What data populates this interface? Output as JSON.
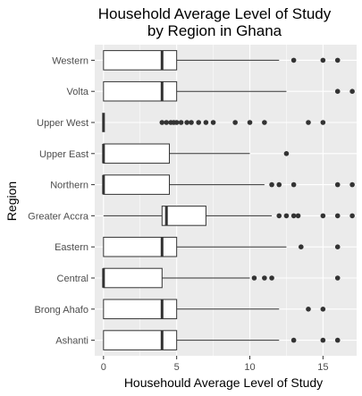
{
  "chart_data": {
    "type": "boxplot",
    "title_lines": [
      "Household Average Level of Study",
      "by Region in Ghana"
    ],
    "xlabel": "Househould Average Level of Study",
    "ylabel": "Region",
    "xlim": [
      -0.6,
      17.3
    ],
    "xticks": [
      0,
      5,
      10,
      15
    ],
    "grid": true,
    "orientation": "horizontal",
    "colors": {
      "panel_bg": "#ebebeb",
      "grid": "#ffffff",
      "box_fill": "#ffffff",
      "box_stroke": "#333333",
      "outlier": "#333333"
    },
    "categories": [
      "Western",
      "Volta",
      "Upper West",
      "Upper East",
      "Northern",
      "Greater Accra",
      "Eastern",
      "Central",
      "Brong Ahafo",
      "Ashanti"
    ],
    "boxes": [
      {
        "region": "Western",
        "min": 0,
        "q1": 0,
        "median": 4,
        "q3": 5,
        "max": 12,
        "outliers": [
          13,
          15,
          16
        ]
      },
      {
        "region": "Volta",
        "min": 0,
        "q1": 0,
        "median": 4,
        "q3": 5,
        "max": 12.5,
        "outliers": [
          16,
          17
        ]
      },
      {
        "region": "Upper West",
        "min": 0,
        "q1": 0,
        "median": 0,
        "q3": 0,
        "max": 0,
        "outliers": [
          4,
          4.3,
          4.6,
          4.8,
          5,
          5.3,
          5.7,
          6,
          6.5,
          7,
          7.5,
          9,
          10,
          11,
          14,
          15
        ]
      },
      {
        "region": "Upper East",
        "min": 0,
        "q1": 0,
        "median": 0,
        "q3": 4.5,
        "max": 10,
        "outliers": [
          12.5
        ]
      },
      {
        "region": "Northern",
        "min": 0,
        "q1": 0,
        "median": 0,
        "q3": 4.5,
        "max": 11,
        "outliers": [
          11.5,
          12,
          13,
          16,
          17
        ]
      },
      {
        "region": "Greater Accra",
        "min": 0,
        "q1": 4,
        "median": 4.3,
        "q3": 7,
        "max": 11.5,
        "outliers": [
          12,
          12.5,
          13,
          13.3,
          15,
          16,
          17
        ]
      },
      {
        "region": "Eastern",
        "min": 0,
        "q1": 0,
        "median": 4,
        "q3": 5,
        "max": 12.5,
        "outliers": [
          13.5,
          16
        ]
      },
      {
        "region": "Central",
        "min": 0,
        "q1": 0,
        "median": 0,
        "q3": 4,
        "max": 10,
        "outliers": [
          10.3,
          11,
          11.5,
          16
        ]
      },
      {
        "region": "Brong Ahafo",
        "min": 0,
        "q1": 0,
        "median": 4,
        "q3": 5,
        "max": 12,
        "outliers": [
          14,
          15
        ]
      },
      {
        "region": "Ashanti",
        "min": 0,
        "q1": 0,
        "median": 4,
        "q3": 5,
        "max": 12,
        "outliers": [
          13,
          15,
          16
        ]
      }
    ]
  }
}
